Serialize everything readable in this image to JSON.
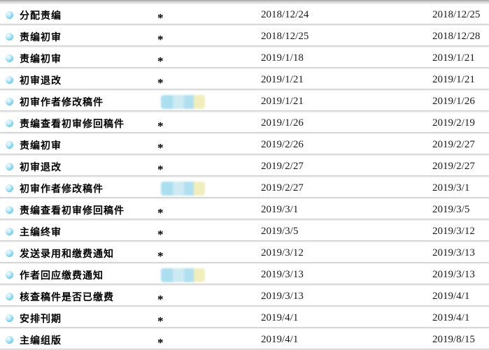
{
  "colors": {
    "background": "#ffffff",
    "divider_dark": "#c3c3c3",
    "divider_light": "#f7f7f7",
    "top_bar_dark": "#9a9a9a",
    "label_text": "#000000",
    "date_text": "#1a1a1a",
    "bullet_outer": "#6bcbea",
    "bullet_inner": "#f0fbfe"
  },
  "redaction": {
    "segment_colors": [
      "#abdeef",
      "#cdeaf3",
      "#b0e0ef",
      "#f1eebd"
    ]
  },
  "icons": {
    "bullet": "glossy-cyan-ball"
  },
  "table": {
    "rows": [
      {
        "step": "分配责编",
        "operator": "*",
        "redacted": false,
        "start": "2018/12/24",
        "end": "2018/12/25"
      },
      {
        "step": "责编初审",
        "operator": "*",
        "redacted": false,
        "start": "2018/12/25",
        "end": "2018/12/28"
      },
      {
        "step": "责编初审",
        "operator": "*",
        "redacted": false,
        "start": "2019/1/18",
        "end": "2019/1/21"
      },
      {
        "step": "初审退改",
        "operator": "*",
        "redacted": false,
        "start": "2019/1/21",
        "end": "2019/1/21"
      },
      {
        "step": "初审作者修改稿件",
        "operator": "",
        "redacted": true,
        "start": "2019/1/21",
        "end": "2019/1/26"
      },
      {
        "step": "责编查看初审修回稿件",
        "operator": "*",
        "redacted": false,
        "start": "2019/1/26",
        "end": "2019/2/19"
      },
      {
        "step": "责编初审",
        "operator": "*",
        "redacted": false,
        "start": "2019/2/26",
        "end": "2019/2/27"
      },
      {
        "step": "初审退改",
        "operator": "*",
        "redacted": false,
        "start": "2019/2/27",
        "end": "2019/2/27"
      },
      {
        "step": "初审作者修改稿件",
        "operator": "",
        "redacted": true,
        "start": "2019/2/27",
        "end": "2019/3/1"
      },
      {
        "step": "责编查看初审修回稿件",
        "operator": "*",
        "redacted": false,
        "start": "2019/3/1",
        "end": "2019/3/5"
      },
      {
        "step": "主编终审",
        "operator": "*",
        "redacted": false,
        "start": "2019/3/5",
        "end": "2019/3/12"
      },
      {
        "step": "发送录用和缴费通知",
        "operator": "*",
        "redacted": false,
        "start": "2019/3/12",
        "end": "2019/3/13"
      },
      {
        "step": "作者回应缴费通知",
        "operator": "",
        "redacted": true,
        "start": "2019/3/13",
        "end": "2019/3/13"
      },
      {
        "step": "核查稿件是否已缴费",
        "operator": "*",
        "redacted": false,
        "start": "2019/3/13",
        "end": "2019/4/1"
      },
      {
        "step": "安排刊期",
        "operator": "*",
        "redacted": false,
        "start": "2019/4/1",
        "end": "2019/4/1"
      },
      {
        "step": "主编组版",
        "operator": "*",
        "redacted": false,
        "start": "2019/4/1",
        "end": "2019/8/15"
      }
    ]
  }
}
